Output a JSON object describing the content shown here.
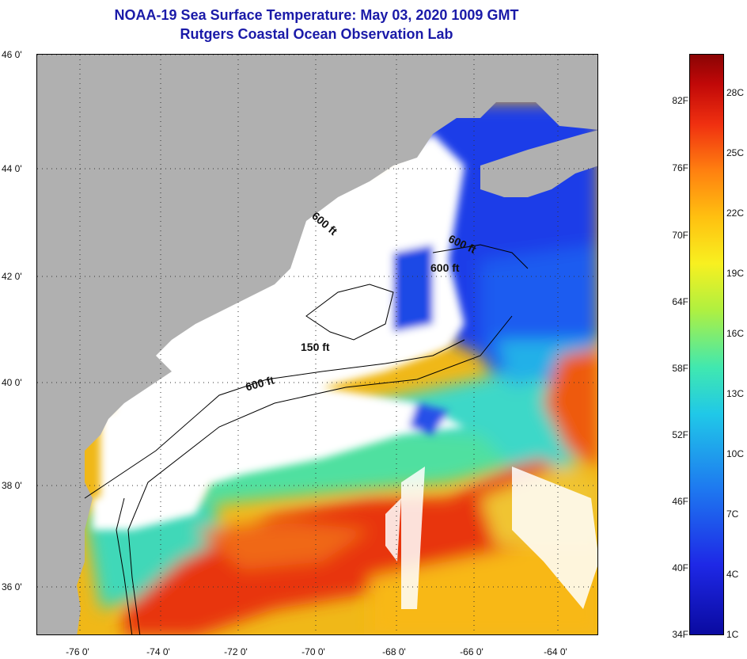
{
  "title": {
    "line1": "NOAA-19 Sea Surface Temperature:  May 03, 2020 1009 GMT",
    "line2": "Rutgers Coastal Ocean Observation Lab"
  },
  "map": {
    "latitude_labels": [
      "46 0'",
      "44 0'",
      "42 0'",
      "40 0'",
      "38 0'",
      "36 0'"
    ],
    "longitude_labels": [
      "-76 0'",
      "-74 0'",
      "-72 0'",
      "-70 0'",
      "-68 0'",
      "-66 0'",
      "-64 0'"
    ],
    "contour_labels": [
      "600 ft",
      "600 ft",
      "600 ft",
      "150 ft",
      "600 ft"
    ],
    "colors": {
      "land": "#b0b0b0",
      "cloud": "#ffffff",
      "cold": "#1a32e6",
      "warm": "#e82a10",
      "mid": "#f8c020"
    }
  },
  "colorbar": {
    "fahrenheit_labels": [
      "82F",
      "76F",
      "70F",
      "64F",
      "58F",
      "52F",
      "46F",
      "40F",
      "34F"
    ],
    "celsius_labels": [
      "28C",
      "25C",
      "22C",
      "19C",
      "16C",
      "13C",
      "10C",
      "7C",
      "4C",
      "1C"
    ]
  }
}
